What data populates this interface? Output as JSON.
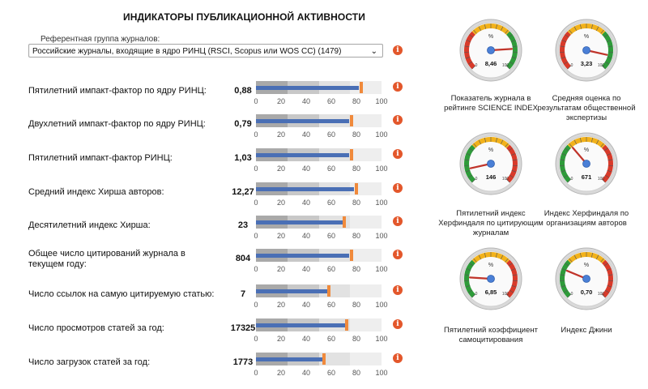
{
  "header": {
    "title": "ИНДИКАТОРЫ ПУБЛИКАЦИОННОЙ АКТИВНОСТИ"
  },
  "reference": {
    "label": "Референтная группа журналов:",
    "selected": "Российские журналы, входящие в ядро РИНЦ (RSCI, Scopus или WOS CC) (1479)"
  },
  "bar_ticks": [
    "0",
    "20",
    "40",
    "60",
    "80",
    "100"
  ],
  "colors": {
    "bar_fill": "#4a6fb5",
    "target": "#f08a3c",
    "info": "#e3572b",
    "band_dark": "#a9a9a9",
    "band_mid": "#c8c8c8",
    "band_light": "#e2e2e2"
  },
  "rows": [
    {
      "label": "Пятилетний импакт-фактор по ядру РИНЦ:",
      "value": "0,88",
      "bar": 82,
      "target": 84
    },
    {
      "label": "Двухлетний импакт-фактор по ядру РИНЦ:",
      "value": "0,79",
      "bar": 74,
      "target": 76
    },
    {
      "label": "Пятилетний импакт-фактор РИНЦ:",
      "value": "1,03",
      "bar": 74,
      "target": 76
    },
    {
      "label": "Средний индекс Хирша авторов:",
      "value": "12,27",
      "bar": 78,
      "target": 80
    },
    {
      "label": "Десятилетний индекс Хирша:",
      "value": "23",
      "bar": 69,
      "target": 70
    },
    {
      "label": "Общее число цитирований журнала в текущем году:",
      "value": "804",
      "bar": 74,
      "target": 76
    },
    {
      "label": "Число ссылок на самую цитируемую статью:",
      "value": "7",
      "bar": 57,
      "target": 58
    },
    {
      "label": "Число просмотров статей за год:",
      "value": "17325",
      "bar": 71,
      "target": 72
    },
    {
      "label": "Число загрузок статей за год:",
      "value": "1773",
      "bar": 53,
      "target": 54
    }
  ],
  "gauges": [
    {
      "caption": "Показатель журнала в рейтинге SCIENCE INDEX",
      "value": "8,46",
      "needle": 82,
      "scheme": "ryg"
    },
    {
      "caption": "Средняя оценка по результатам общественной экспертизы",
      "value": "3,23",
      "needle": 88,
      "scheme": "ryg"
    },
    {
      "caption": "Пятилетний индекс Херфиндаля по цитирующим журналам",
      "value": "146",
      "needle": 12,
      "scheme": "gyr"
    },
    {
      "caption": "Индекс Херфиндаля по организациям авторов",
      "value": "671",
      "needle": 35,
      "scheme": "gyr"
    },
    {
      "caption": "Пятилетний коэффициент самоцитирования",
      "value": "6,85",
      "needle": 18,
      "scheme": "gyr"
    },
    {
      "caption": "Индекс Джини",
      "value": "0,70",
      "needle": 25,
      "scheme": "gyr"
    }
  ],
  "gauge_labels": {
    "percent": "%",
    "min": "0",
    "max": "100"
  }
}
